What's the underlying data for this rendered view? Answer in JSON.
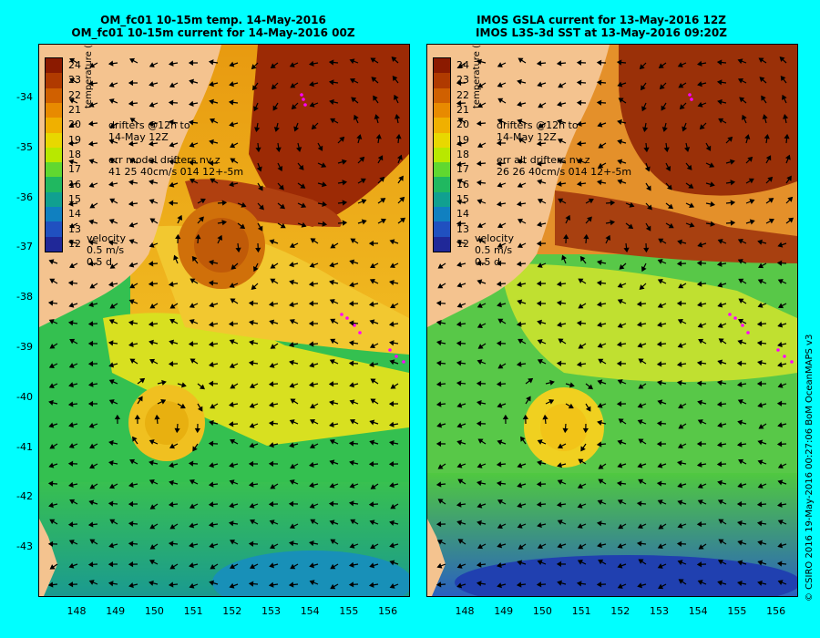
{
  "panels": [
    {
      "title_line1": "OM_fc01 10-15m temp. 14-May-2016",
      "title_line2": "OM_fc01 10-15m current for 14-May-2016 00Z",
      "drifters_line1": "drifters @12h to",
      "drifters_line2": "14-May 12Z",
      "err_line1": "err model drifters nv z",
      "err_line2": "41 25 40cm/s 014 12+-5m",
      "velocity_label": "velocity",
      "velocity_scale": "0.5 m/s",
      "velocity_time": "0.5 d"
    },
    {
      "title_line1": "IMOS GSLA current for 13-May-2016 12Z",
      "title_line2": "IMOS L3S-3d SST at 13-May-2016 09:20Z",
      "drifters_line1": "drifters @12h to",
      "drifters_line2": "14-May 12Z",
      "err_line1": "err alt drifters nv z",
      "err_line2": "26 26 40cm/s 014 12+-5m",
      "velocity_label": "velocity",
      "velocity_scale": "0.5 m/s",
      "velocity_time": "0.5 d"
    }
  ],
  "colorbar": {
    "title": "temperature (°C)",
    "ticks": [
      "24",
      "23",
      "22",
      "21",
      "20",
      "19",
      "18",
      "17",
      "16",
      "15",
      "14",
      "13",
      "12"
    ],
    "colors": [
      "#8b1a00",
      "#b03a00",
      "#d06000",
      "#e88a00",
      "#f0b000",
      "#e8d800",
      "#b8e800",
      "#60d830",
      "#20b860",
      "#10a090",
      "#1080c0",
      "#2050c0",
      "#202898"
    ]
  },
  "y_ticks": [
    "-34",
    "-35",
    "-36",
    "-37",
    "-38",
    "-39",
    "-40",
    "-41",
    "-42",
    "-43"
  ],
  "x_ticks": [
    "148",
    "149",
    "150",
    "151",
    "152",
    "153",
    "154",
    "155",
    "156"
  ],
  "land_color": "#f4c38f",
  "drifter_color": "#ff00ff",
  "credit": "© CSIRO 2016   19-May-2016 00:27:06 BoM OceanMAPS v3"
}
